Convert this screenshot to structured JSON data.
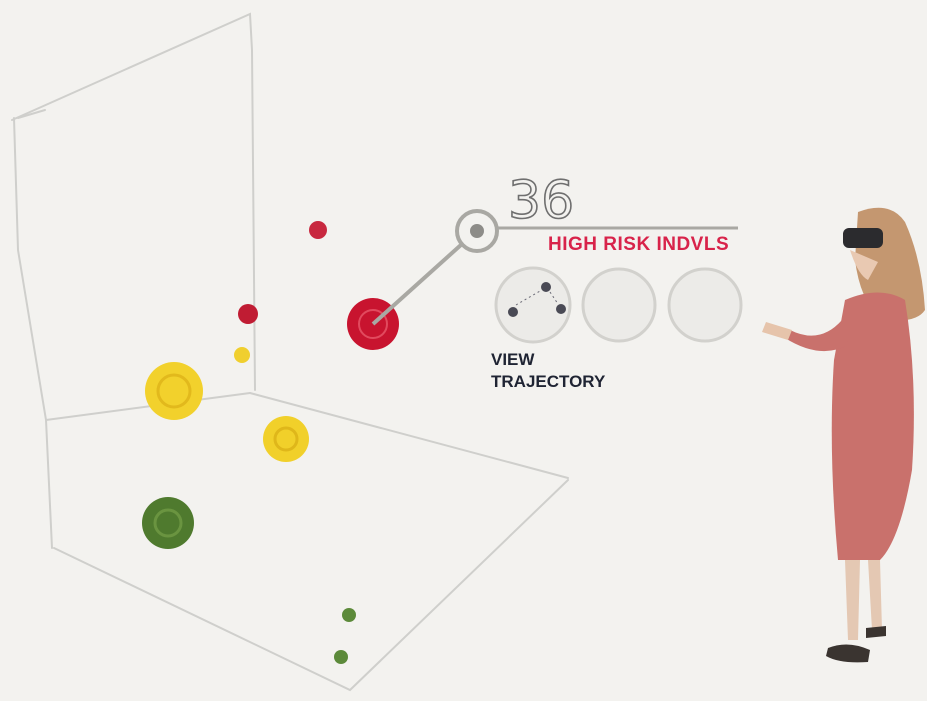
{
  "callout": {
    "count": "36",
    "label": "HIGH RISK INDVLS"
  },
  "actions": {
    "view_trajectory": [
      "VIEW",
      "TRAJECTORY"
    ]
  }
}
